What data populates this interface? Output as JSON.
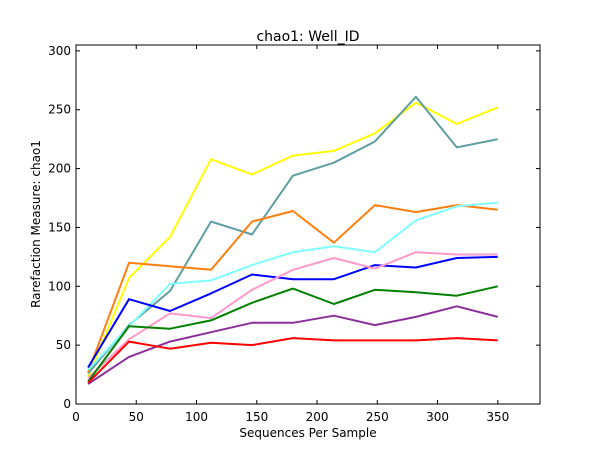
{
  "chart_data": {
    "type": "line",
    "title": "chao1: Well_ID",
    "xlabel": "Sequences Per Sample",
    "ylabel": "Rarefaction Measure: chao1",
    "xlim": [
      0,
      385
    ],
    "ylim": [
      0,
      305
    ],
    "xticks": [
      0,
      50,
      100,
      150,
      200,
      250,
      300,
      350
    ],
    "yticks": [
      0,
      50,
      100,
      150,
      200,
      250,
      300
    ],
    "grid": false,
    "legend": "none",
    "x": [
      10,
      44,
      78,
      112,
      146,
      180,
      214,
      248,
      282,
      316,
      350
    ],
    "series": [
      {
        "color": "#ffff00",
        "values": [
          23,
          107,
          142,
          208,
          195,
          211,
          215,
          230,
          256,
          238,
          252
        ]
      },
      {
        "color": "#5f9ea0",
        "values": [
          26,
          67,
          96,
          155,
          144,
          194,
          205,
          223,
          261,
          218,
          225
        ]
      },
      {
        "color": "#ff7f0e",
        "values": [
          27,
          120,
          117,
          114,
          155,
          164,
          137,
          169,
          163,
          169,
          165
        ]
      },
      {
        "color": "#7fffff",
        "values": [
          29,
          66,
          102,
          105,
          118,
          129,
          134,
          129,
          156,
          168,
          171
        ]
      },
      {
        "color": "#0000ff",
        "values": [
          31,
          89,
          79,
          94,
          110,
          106,
          106,
          118,
          116,
          124,
          125
        ]
      },
      {
        "color": "#ff99cc",
        "values": [
          22,
          55,
          77,
          73,
          97,
          114,
          124,
          115,
          129,
          127,
          127
        ]
      },
      {
        "color": "#008000",
        "values": [
          19,
          66,
          64,
          71,
          86,
          98,
          85,
          97,
          95,
          92,
          100
        ]
      },
      {
        "color": "#8b2f9b",
        "values": [
          17,
          40,
          53,
          61,
          69,
          69,
          75,
          67,
          74,
          83,
          74
        ]
      },
      {
        "color": "#ff0000",
        "values": [
          18,
          53,
          47,
          52,
          50,
          56,
          54,
          54,
          54,
          56,
          54
        ]
      }
    ]
  }
}
